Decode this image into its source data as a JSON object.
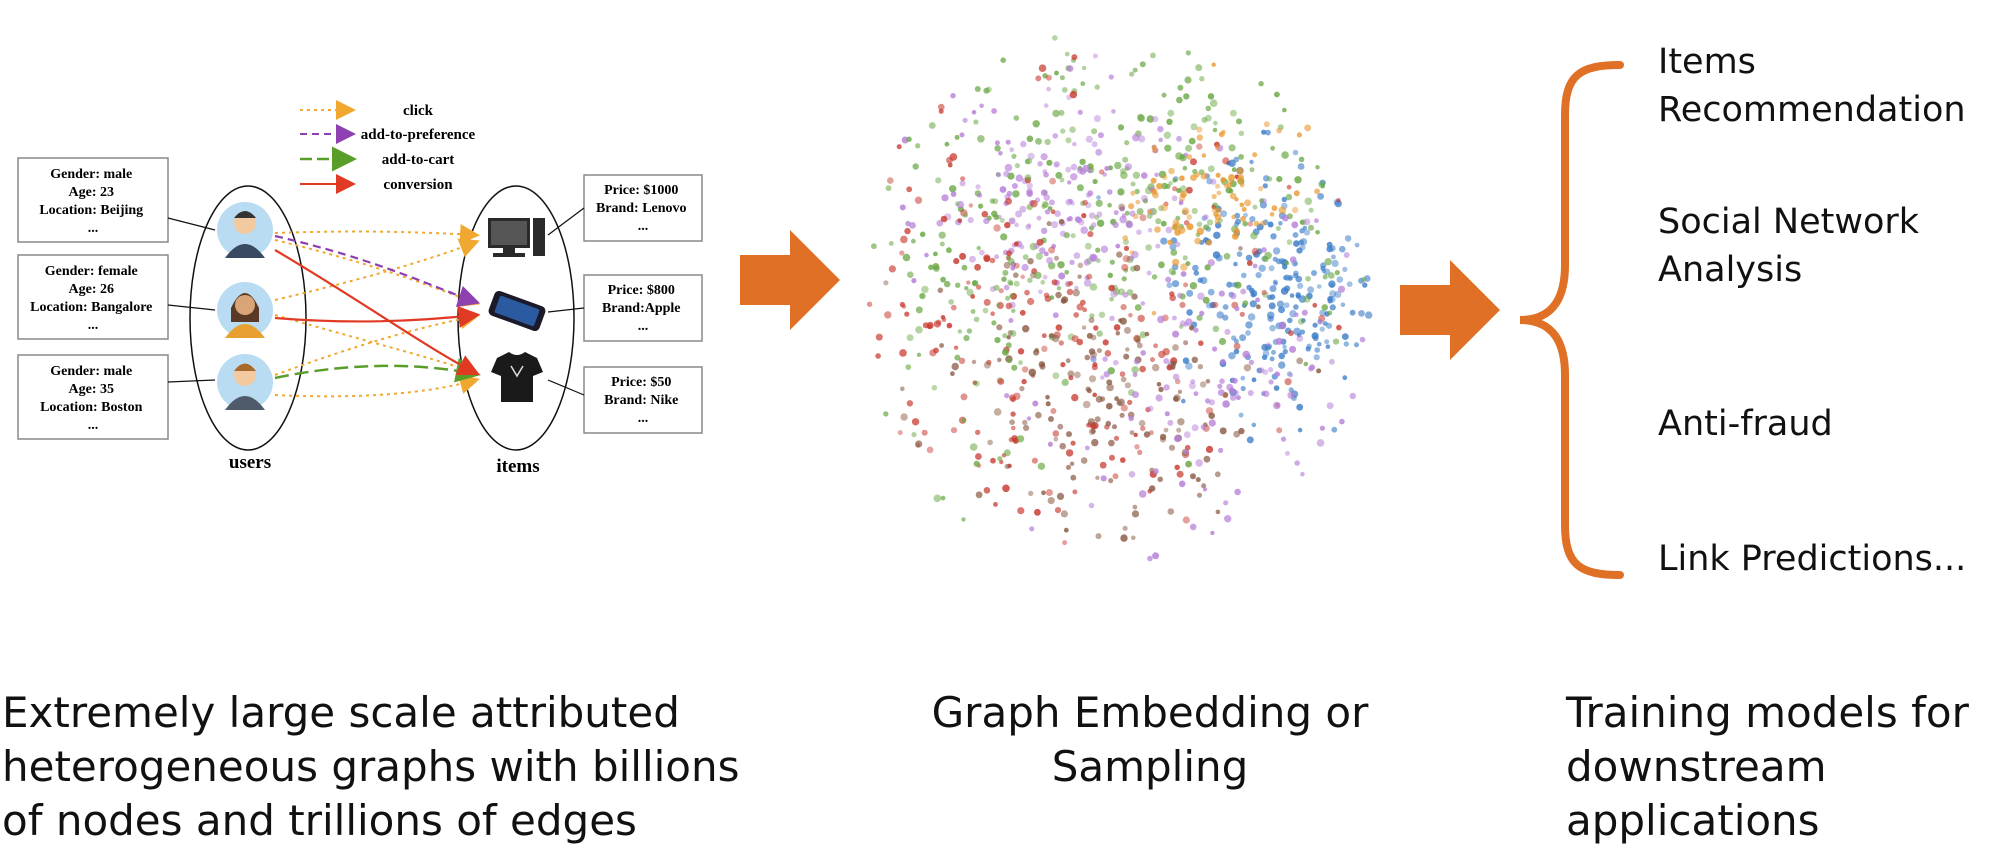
{
  "legend": {
    "click": "click",
    "add_to_preference": "add-to-preference",
    "add_to_cart": "add-to-cart",
    "conversion": "conversion"
  },
  "users_label": "users",
  "items_label": "items",
  "user_attrs": [
    [
      "Gender: male",
      "Age: 23",
      "Location: Beijing",
      "..."
    ],
    [
      "Gender: female",
      "Age: 26",
      "Location: Bangalore",
      "..."
    ],
    [
      "Gender: male",
      "Age: 35",
      "Location: Boston",
      "..."
    ]
  ],
  "item_attrs": [
    [
      "Price: $1000",
      "Brand: Lenovo",
      "..."
    ],
    [
      "Price: $800",
      "Brand:Apple",
      "..."
    ],
    [
      "Price: $50",
      "Brand: Nike",
      "..."
    ]
  ],
  "applications": [
    "Items Recommendation",
    "Social Network Analysis",
    "Anti-fraud",
    "Link Predictions..."
  ],
  "captions": {
    "left": "Extremely large scale attributed\nheterogeneous graphs with billions\nof nodes and trillions of edges",
    "middle": "Graph Embedding or\nSampling",
    "right": "Training models for\ndownstream\napplications"
  },
  "colors": {
    "click": "#f0a830",
    "preference": "#8e3fb0",
    "cart": "#5a9e2a",
    "conversion": "#e03a24",
    "arrow": "#e07026",
    "cluster_blue": "#3a7cc8",
    "cluster_green": "#6aa845",
    "cluster_purple": "#b780d8",
    "cluster_red": "#c83a30",
    "cluster_brown": "#8a5a44",
    "cluster_orange": "#e8962a"
  }
}
